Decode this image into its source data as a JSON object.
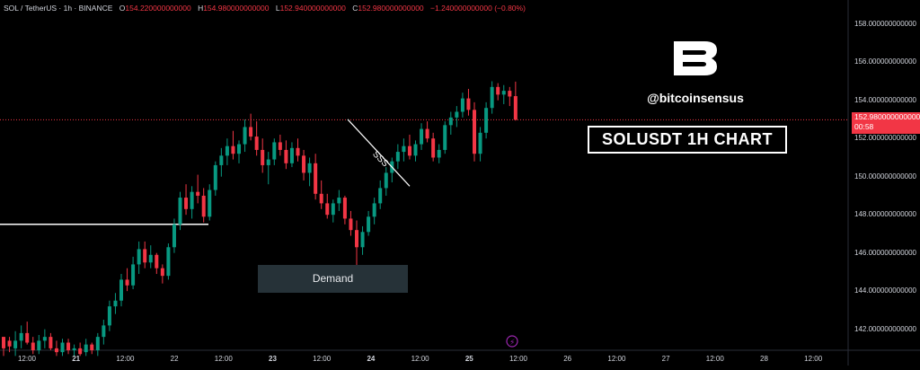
{
  "header": {
    "symbol": "SOL / TetherUS · 1h · BINANCE",
    "open_label": "O",
    "open": "154.220000000000",
    "high_label": "H",
    "high": "154.980000000000",
    "low_label": "L",
    "low": "152.940000000000",
    "close_label": "C",
    "close": "152.980000000000",
    "change": "−1.240000000000 (−0.80%)"
  },
  "watermark": {
    "handle": "@bitcoinsensus",
    "title": "SOLUSDT 1H CHART",
    "logo_icon": "bitcoinsensus-b-logo"
  },
  "annotations": {
    "demand_label": "Demand",
    "sss_label": "SSS"
  },
  "price_tag": {
    "price": "152.980000000000",
    "countdown": "00:58"
  },
  "colors": {
    "up": "#089981",
    "down": "#f23645",
    "background": "#000000",
    "text": "#d1d4dc"
  },
  "chart_data": {
    "type": "candlestick",
    "y_axis_ticks": [
      "158.000000000000",
      "156.000000000000",
      "154.000000000000",
      "152.000000000000",
      "150.000000000000",
      "148.000000000000",
      "146.000000000000",
      "144.000000000000",
      "142.000000000000"
    ],
    "ylim": [
      140.9,
      158.6
    ],
    "x_axis_ticks": [
      "12:00",
      "21",
      "12:00",
      "22",
      "12:00",
      "23",
      "12:00",
      "24",
      "12:00",
      "25",
      "12:00",
      "26",
      "12:00",
      "27",
      "12:00",
      "28",
      "12:00"
    ],
    "bold_ticks": [
      "21",
      "23",
      "24",
      "25"
    ],
    "current_price": 152.98,
    "horizontal_level": 147.5,
    "demand_zone": [
      143.5,
      144.9
    ],
    "trendline": {
      "from": [
        153.0
      ],
      "to": [
        149.5
      ]
    },
    "candles": [
      [
        141.6,
        141.6,
        140.6,
        141.0
      ],
      [
        141.4,
        141.6,
        140.8,
        141.1
      ],
      [
        141.0,
        141.9,
        140.6,
        141.4
      ],
      [
        141.4,
        142.2,
        141.0,
        141.8
      ],
      [
        141.8,
        142.4,
        141.2,
        141.3
      ],
      [
        141.3,
        141.6,
        140.7,
        140.9
      ],
      [
        140.9,
        141.7,
        140.7,
        141.4
      ],
      [
        141.4,
        142.0,
        141.0,
        141.6
      ],
      [
        141.6,
        141.8,
        140.9,
        141.0
      ],
      [
        141.0,
        141.4,
        140.6,
        140.8
      ],
      [
        140.8,
        141.5,
        140.6,
        141.3
      ],
      [
        141.3,
        141.5,
        140.7,
        140.9
      ],
      [
        140.9,
        141.2,
        140.6,
        141.0
      ],
      [
        141.0,
        141.3,
        140.6,
        140.7
      ],
      [
        140.8,
        141.5,
        140.6,
        141.2
      ],
      [
        141.2,
        141.3,
        140.7,
        140.9
      ],
      [
        140.9,
        141.8,
        140.6,
        141.6
      ],
      [
        141.6,
        142.5,
        141.2,
        142.2
      ],
      [
        142.2,
        143.5,
        141.9,
        143.2
      ],
      [
        143.2,
        143.9,
        142.8,
        143.5
      ],
      [
        143.5,
        144.9,
        143.2,
        144.6
      ],
      [
        144.6,
        145.2,
        144.0,
        144.3
      ],
      [
        144.3,
        145.8,
        144.1,
        145.4
      ],
      [
        145.4,
        146.6,
        144.9,
        146.2
      ],
      [
        146.2,
        146.6,
        145.2,
        145.5
      ],
      [
        145.5,
        146.4,
        145.2,
        145.9
      ],
      [
        145.9,
        146.0,
        144.9,
        145.2
      ],
      [
        145.2,
        145.4,
        144.4,
        144.8
      ],
      [
        144.8,
        146.5,
        144.6,
        146.3
      ],
      [
        146.3,
        147.8,
        146.0,
        147.5
      ],
      [
        147.5,
        149.2,
        147.2,
        148.9
      ],
      [
        148.9,
        149.6,
        148.0,
        148.3
      ],
      [
        148.3,
        149.5,
        147.8,
        149.2
      ],
      [
        149.2,
        150.1,
        148.6,
        149.0
      ],
      [
        149.0,
        149.4,
        147.6,
        147.9
      ],
      [
        147.9,
        149.6,
        147.7,
        149.3
      ],
      [
        149.3,
        150.8,
        149.0,
        150.6
      ],
      [
        150.6,
        151.5,
        150.0,
        151.1
      ],
      [
        151.1,
        152.0,
        150.6,
        151.6
      ],
      [
        151.6,
        152.4,
        150.9,
        151.2
      ],
      [
        151.2,
        151.9,
        150.7,
        151.7
      ],
      [
        151.7,
        153.0,
        151.3,
        152.6
      ],
      [
        152.6,
        153.3,
        151.9,
        152.1
      ],
      [
        152.1,
        152.9,
        151.1,
        151.4
      ],
      [
        151.4,
        152.0,
        150.2,
        150.6
      ],
      [
        150.6,
        151.3,
        149.6,
        150.9
      ],
      [
        150.9,
        152.0,
        150.6,
        151.8
      ],
      [
        151.8,
        152.2,
        151.1,
        151.4
      ],
      [
        151.4,
        151.9,
        150.4,
        150.7
      ],
      [
        150.7,
        151.8,
        150.5,
        151.5
      ],
      [
        151.5,
        152.0,
        150.8,
        151.1
      ],
      [
        151.1,
        151.4,
        149.8,
        150.2
      ],
      [
        150.2,
        151.0,
        149.5,
        150.7
      ],
      [
        150.7,
        151.2,
        148.8,
        149.1
      ],
      [
        149.1,
        149.8,
        148.3,
        148.6
      ],
      [
        148.6,
        149.1,
        147.8,
        148.0
      ],
      [
        148.0,
        148.8,
        147.6,
        148.6
      ],
      [
        148.6,
        149.3,
        148.2,
        148.9
      ],
      [
        148.9,
        149.0,
        147.5,
        147.8
      ],
      [
        147.8,
        148.2,
        146.9,
        147.2
      ],
      [
        147.2,
        147.7,
        145.0,
        146.3
      ],
      [
        146.3,
        147.4,
        145.9,
        147.1
      ],
      [
        147.1,
        148.2,
        146.9,
        147.9
      ],
      [
        147.9,
        148.9,
        147.5,
        148.6
      ],
      [
        148.6,
        149.8,
        148.3,
        149.4
      ],
      [
        149.4,
        150.5,
        149.0,
        150.2
      ],
      [
        150.2,
        151.0,
        149.7,
        150.8
      ],
      [
        150.8,
        151.7,
        150.4,
        151.3
      ],
      [
        151.3,
        152.0,
        150.8,
        151.6
      ],
      [
        151.6,
        152.2,
        150.9,
        151.1
      ],
      [
        151.1,
        151.9,
        150.8,
        151.7
      ],
      [
        151.7,
        152.8,
        151.4,
        152.5
      ],
      [
        152.5,
        152.9,
        151.8,
        152.0
      ],
      [
        152.0,
        152.3,
        150.8,
        151.0
      ],
      [
        151.0,
        151.7,
        150.7,
        151.4
      ],
      [
        151.4,
        152.9,
        151.2,
        152.7
      ],
      [
        152.7,
        153.4,
        152.2,
        153.1
      ],
      [
        153.1,
        153.7,
        152.6,
        153.4
      ],
      [
        153.4,
        154.4,
        153.1,
        154.1
      ],
      [
        154.1,
        154.6,
        153.2,
        153.5
      ],
      [
        153.5,
        153.9,
        150.8,
        151.2
      ],
      [
        151.2,
        152.6,
        150.8,
        152.3
      ],
      [
        152.3,
        153.9,
        152.0,
        153.6
      ],
      [
        153.6,
        155.0,
        153.3,
        154.7
      ],
      [
        154.7,
        154.9,
        154.0,
        154.3
      ],
      [
        154.3,
        154.8,
        153.8,
        154.5
      ],
      [
        154.5,
        154.7,
        153.7,
        154.2
      ],
      [
        154.22,
        154.98,
        152.94,
        152.98
      ]
    ]
  }
}
